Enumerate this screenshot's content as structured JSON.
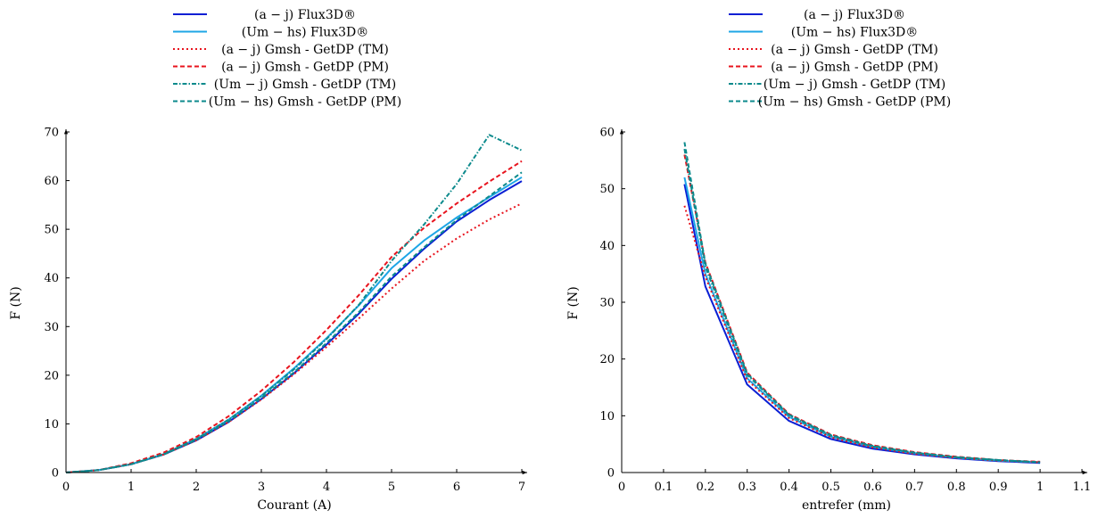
{
  "chart_data": [
    {
      "type": "line",
      "xlabel": "Courant (A)",
      "ylabel": "F (N)",
      "xlim": [
        0,
        7
      ],
      "ylim": [
        0,
        70
      ],
      "xticks": [
        "0",
        "1",
        "2",
        "3",
        "4",
        "5",
        "6",
        "7"
      ],
      "yticks": [
        "0",
        "10",
        "20",
        "30",
        "40",
        "50",
        "60",
        "70"
      ],
      "legend_position": "top-center",
      "series": [
        {
          "name": "(a − j) Flux3D®",
          "color": "#0a1fd4",
          "dash": "solid",
          "x": [
            0,
            0.5,
            1,
            1.5,
            2,
            2.5,
            3,
            3.5,
            4,
            4.5,
            5,
            5.5,
            6,
            6.5,
            7
          ],
          "y": [
            0,
            0.5,
            1.7,
            3.7,
            6.6,
            10.4,
            15.1,
            20.4,
            26.3,
            32.7,
            39.8,
            46.0,
            51.6,
            56.0,
            59.9
          ]
        },
        {
          "name": "(Um − hs) Flux3D®",
          "color": "#1ea6e6",
          "dash": "solid",
          "x": [
            0,
            0.5,
            1,
            1.5,
            2,
            2.5,
            3,
            3.5,
            4,
            4.5,
            5,
            5.5,
            6,
            6.5,
            7
          ],
          "y": [
            0,
            0.5,
            1.7,
            3.8,
            6.9,
            10.9,
            15.8,
            21.4,
            27.6,
            34.4,
            42.0,
            47.7,
            52.4,
            56.6,
            60.7
          ]
        },
        {
          "name": "(a − j) Gmsh - GetDP (TM)",
          "color": "#e8141e",
          "dash": "dot",
          "x": [
            0,
            0.5,
            1,
            1.5,
            2,
            2.5,
            3,
            3.5,
            4,
            4.5,
            5,
            5.5,
            6,
            6.5,
            7
          ],
          "y": [
            0,
            0.5,
            1.7,
            3.7,
            6.6,
            10.4,
            15.0,
            20.2,
            25.8,
            31.7,
            37.8,
            43.5,
            48.1,
            52.0,
            55.3
          ]
        },
        {
          "name": "(a − j) Gmsh - GetDP (PM)",
          "color": "#e8141e",
          "dash": "dash",
          "x": [
            0,
            0.5,
            1,
            1.5,
            2,
            2.5,
            3,
            3.5,
            4,
            4.5,
            5,
            5.5,
            6,
            6.5,
            7
          ],
          "y": [
            0,
            0.5,
            1.9,
            4.1,
            7.3,
            11.6,
            16.8,
            22.7,
            29.3,
            36.5,
            44.3,
            50.3,
            55.3,
            59.8,
            64.0
          ]
        },
        {
          "name": "(Um − j) Gmsh - GetDP (TM)",
          "color": "#0c8a8c",
          "dash": "dashdot",
          "x": [
            0,
            0.5,
            1,
            1.5,
            2,
            2.5,
            3,
            3.5,
            4,
            4.5,
            5,
            5.5,
            6,
            6.5,
            7
          ],
          "y": [
            0,
            0.5,
            1.7,
            3.8,
            6.9,
            10.9,
            15.7,
            21.2,
            27.4,
            34.5,
            43.5,
            51.0,
            59.3,
            69.4,
            66.2
          ]
        },
        {
          "name": "(Um − hs) Gmsh - GetDP (PM)",
          "color": "#0c8a8c",
          "dash": "dash",
          "x": [
            0,
            0.5,
            1,
            1.5,
            2,
            2.5,
            3,
            3.5,
            4,
            4.5,
            5,
            5.5,
            6,
            6.5,
            7
          ],
          "y": [
            0,
            0.5,
            1.7,
            3.7,
            6.7,
            10.6,
            15.3,
            20.6,
            26.6,
            33.0,
            40.3,
            46.3,
            51.9,
            56.8,
            61.7
          ]
        }
      ]
    },
    {
      "type": "line",
      "xlabel": "entrefer (mm)",
      "ylabel": "F (N)",
      "xlim": [
        0,
        1.1
      ],
      "ylim": [
        0,
        60
      ],
      "xticks": [
        "0",
        "0.1",
        "0.2",
        "0.3",
        "0.4",
        "0.5",
        "0.6",
        "0.7",
        "0.8",
        "0.9",
        "1",
        "1.1"
      ],
      "yticks": [
        "0",
        "10",
        "20",
        "30",
        "40",
        "50",
        "60"
      ],
      "legend_position": "top-center",
      "series": [
        {
          "name": "(a − j) Flux3D®",
          "color": "#0a1fd4",
          "dash": "solid",
          "x": [
            0.15,
            0.2,
            0.3,
            0.4,
            0.5,
            0.6,
            0.7,
            0.8,
            0.9,
            1.0
          ],
          "y": [
            50.8,
            32.8,
            15.5,
            9.1,
            5.9,
            4.2,
            3.2,
            2.5,
            2.0,
            1.7
          ]
        },
        {
          "name": "(Um − hs) Flux3D®",
          "color": "#1ea6e6",
          "dash": "solid",
          "x": [
            0.15,
            0.2,
            0.3,
            0.4,
            0.5,
            0.6,
            0.7,
            0.8,
            0.9,
            1.0
          ],
          "y": [
            52.0,
            35.0,
            16.6,
            9.8,
            6.3,
            4.5,
            3.4,
            2.6,
            2.1,
            1.8
          ]
        },
        {
          "name": "(a − j) Gmsh - GetDP (TM)",
          "color": "#e8141e",
          "dash": "dot",
          "x": [
            0.15,
            0.2,
            0.3,
            0.4,
            0.5,
            0.6,
            0.7,
            0.8,
            0.9,
            1.0
          ],
          "y": [
            47.0,
            34.5,
            16.3,
            9.6,
            6.2,
            4.4,
            3.3,
            2.6,
            2.1,
            1.8
          ]
        },
        {
          "name": "(a − j) Gmsh - GetDP (PM)",
          "color": "#e8141e",
          "dash": "dash",
          "x": [
            0.15,
            0.2,
            0.3,
            0.4,
            0.5,
            0.6,
            0.7,
            0.8,
            0.9,
            1.0
          ],
          "y": [
            56.0,
            37.0,
            17.6,
            10.3,
            6.7,
            4.8,
            3.6,
            2.8,
            2.2,
            1.9
          ]
        },
        {
          "name": "(Um − j) Gmsh - GetDP (TM)",
          "color": "#0c8a8c",
          "dash": "dashdot",
          "x": [
            0.15,
            0.2,
            0.3,
            0.4,
            0.5,
            0.6,
            0.7,
            0.8,
            0.9,
            1.0
          ],
          "y": [
            57.0,
            36.2,
            17.2,
            10.1,
            6.5,
            4.6,
            3.5,
            2.7,
            2.2,
            1.8
          ]
        },
        {
          "name": "(Um − hs) Gmsh - GetDP (PM)",
          "color": "#0c8a8c",
          "dash": "dash",
          "x": [
            0.15,
            0.2,
            0.3,
            0.4,
            0.5,
            0.6,
            0.7,
            0.8,
            0.9,
            1.0
          ],
          "y": [
            58.2,
            36.8,
            17.4,
            10.2,
            6.6,
            4.7,
            3.5,
            2.7,
            2.2,
            1.8
          ]
        }
      ]
    }
  ]
}
